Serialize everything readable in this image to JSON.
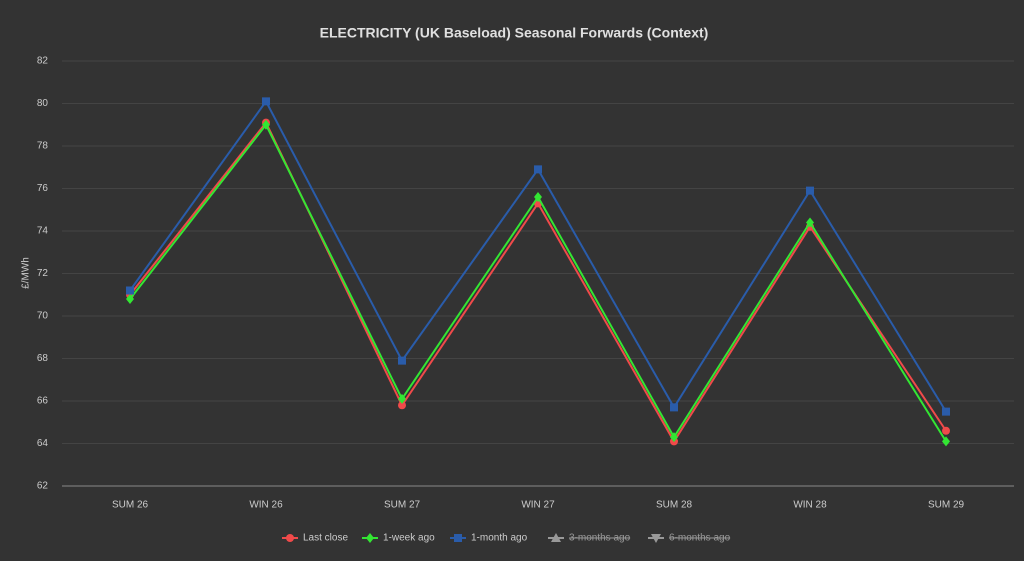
{
  "chart_data": {
    "type": "line",
    "title": "ELECTRICITY (UK Baseload) Seasonal Forwards (Context)",
    "y_label": "£/MWh",
    "categories": [
      "SUM 26",
      "WIN 26",
      "SUM 27",
      "WIN 27",
      "SUM 28",
      "WIN 28",
      "SUM 29"
    ],
    "series": [
      {
        "name": "Last close",
        "color": "#f04a4a",
        "marker": "circle",
        "values": [
          71.0,
          79.1,
          65.8,
          75.3,
          64.1,
          74.2,
          64.6
        ]
      },
      {
        "name": "1-week ago",
        "color": "#33e633",
        "marker": "diamond",
        "values": [
          70.8,
          79.0,
          66.1,
          75.6,
          64.3,
          74.4,
          64.1
        ]
      },
      {
        "name": "1-month ago",
        "color": "#2a5caa",
        "marker": "square",
        "values": [
          71.2,
          80.1,
          67.9,
          76.9,
          65.7,
          75.9,
          65.5
        ]
      },
      {
        "name": "3-months ago",
        "color": "#999999",
        "marker": "triangle",
        "hidden": true,
        "values": [
          null,
          null,
          null,
          null,
          null,
          null,
          null
        ]
      },
      {
        "name": "6-months ago",
        "color": "#999999",
        "marker": "triangle-down",
        "hidden": true,
        "values": [
          null,
          null,
          null,
          null,
          null,
          null,
          null
        ]
      }
    ],
    "ylim": [
      62,
      82
    ],
    "yticks": [
      62,
      64,
      66,
      68,
      70,
      72,
      74,
      76,
      78,
      80,
      82
    ],
    "grid": true,
    "legend": "bottom"
  }
}
